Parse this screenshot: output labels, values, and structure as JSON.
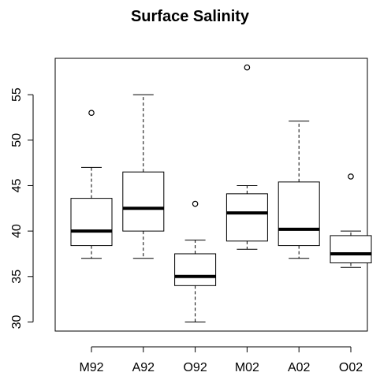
{
  "chart_data": {
    "type": "boxplot",
    "title": "Surface Salinity",
    "xlabel": "",
    "ylabel": "",
    "ylim": [
      29,
      59
    ],
    "yticks": [
      30,
      35,
      40,
      45,
      50,
      55
    ],
    "categories": [
      "M92",
      "A92",
      "O92",
      "M02",
      "A02",
      "O02"
    ],
    "boxes": [
      {
        "category": "M92",
        "whisker_low": 37,
        "q1": 38.4,
        "median": 40,
        "q3": 43.6,
        "whisker_high": 47,
        "outliers": [
          53
        ]
      },
      {
        "category": "A92",
        "whisker_low": 37,
        "q1": 40,
        "median": 42.5,
        "q3": 46.5,
        "whisker_high": 55,
        "outliers": []
      },
      {
        "category": "O92",
        "whisker_low": 30,
        "q1": 34,
        "median": 35,
        "q3": 37.5,
        "whisker_high": 39,
        "outliers": [
          43
        ]
      },
      {
        "category": "M02",
        "whisker_low": 38,
        "q1": 38.9,
        "median": 42,
        "q3": 44.1,
        "whisker_high": 45,
        "outliers": [
          58
        ]
      },
      {
        "category": "A02",
        "whisker_low": 37,
        "q1": 38.4,
        "median": 40.2,
        "q3": 45.4,
        "whisker_high": 52.1,
        "outliers": []
      },
      {
        "category": "O02",
        "whisker_low": 36,
        "q1": 36.5,
        "median": 37.5,
        "q3": 39.5,
        "whisker_high": 40,
        "outliers": [
          46
        ]
      }
    ]
  }
}
